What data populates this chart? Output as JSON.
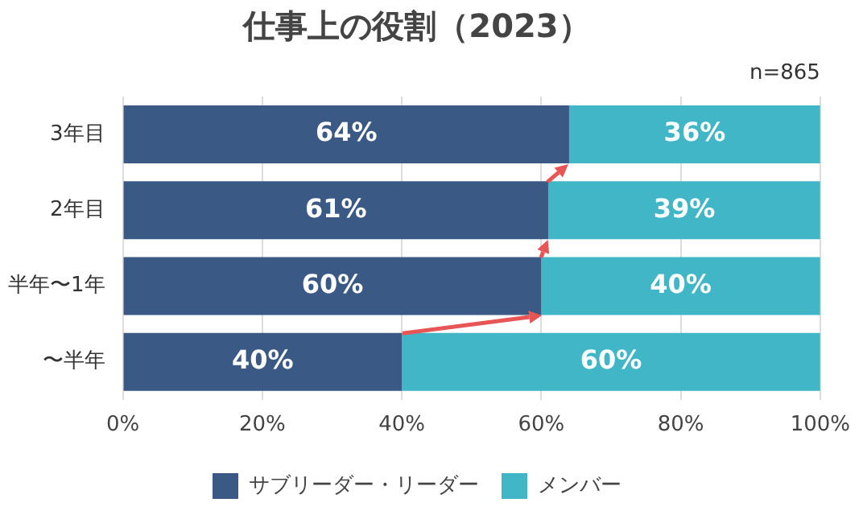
{
  "chart_data": {
    "type": "bar",
    "title": "仕事上の役割（2023）",
    "orientation": "horizontal",
    "stacked": true,
    "categories": [
      "3年目",
      "2年目",
      "半年〜1年",
      "〜半年"
    ],
    "series": [
      {
        "name": "サブリーダー・リーダー",
        "color": "#3a5a85",
        "values": [
          64,
          61,
          60,
          40
        ],
        "value_labels": [
          "64%",
          "61%",
          "60%",
          "40%"
        ]
      },
      {
        "name": "メンバー",
        "color": "#41b6c6",
        "values": [
          36,
          39,
          40,
          60
        ],
        "value_labels": [
          "36%",
          "39%",
          "40%",
          "60%"
        ]
      }
    ],
    "xlim": [
      0,
      100
    ],
    "xticks": [
      {
        "value": 0,
        "label": "0%"
      },
      {
        "value": 20,
        "label": "20%"
      },
      {
        "value": 40,
        "label": "40%"
      },
      {
        "value": 60,
        "label": "60%"
      },
      {
        "value": 80,
        "label": "80%"
      },
      {
        "value": 100,
        "label": "100%"
      }
    ],
    "grid": "x",
    "legend": "bottom",
    "annotations": [
      "n=865"
    ]
  }
}
